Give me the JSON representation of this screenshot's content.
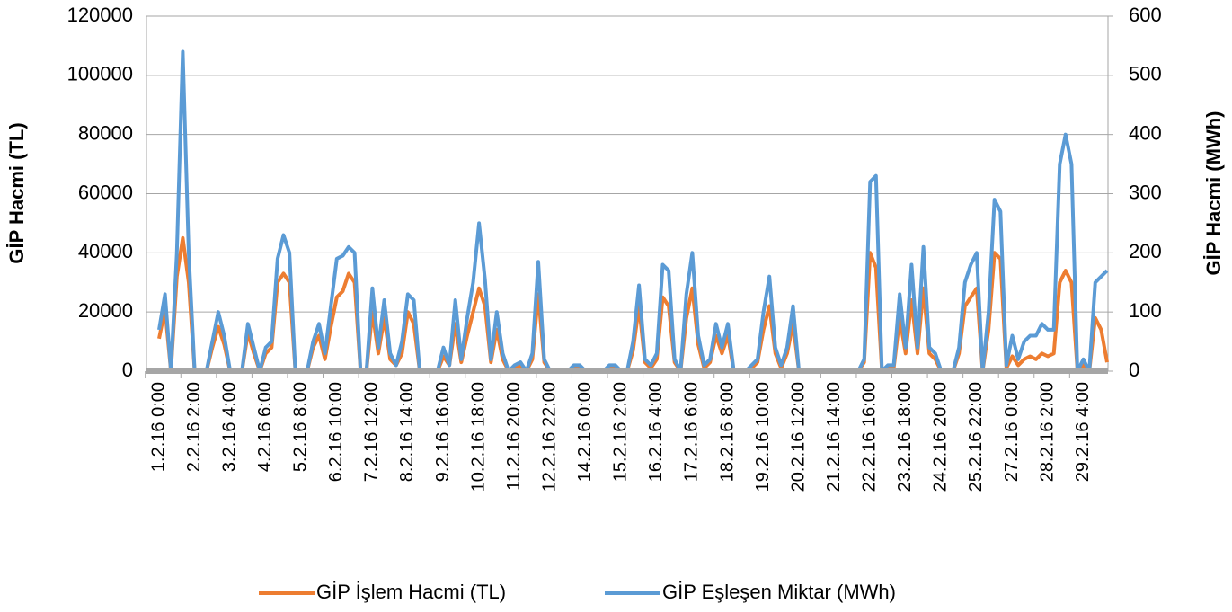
{
  "chart_data": {
    "type": "line",
    "y_label": "GİP Hacmi (TL)",
    "y2_label": "GİP Hacmi (MWh)",
    "categories": [
      "1.2.16 0:00",
      null,
      null,
      null,
      null,
      null,
      "2.2.16 2:00",
      null,
      null,
      null,
      null,
      null,
      "3.2.16 4:00",
      null,
      null,
      null,
      null,
      null,
      "4.2.16 6:00",
      null,
      null,
      null,
      null,
      null,
      "5.2.16 8:00",
      null,
      null,
      null,
      null,
      null,
      "6.2.16 10:00",
      null,
      null,
      null,
      null,
      null,
      "7.2.16 12:00",
      null,
      null,
      null,
      null,
      null,
      "8.2.16 14:00",
      null,
      null,
      null,
      null,
      null,
      "9.2.16 16:00",
      null,
      null,
      null,
      null,
      null,
      "10.2.16 18:00",
      null,
      null,
      null,
      null,
      null,
      "11.2.16 20:00",
      null,
      null,
      null,
      null,
      null,
      "12.2.16 22:00",
      null,
      null,
      null,
      null,
      null,
      "14.2.16 0:00",
      null,
      null,
      null,
      null,
      null,
      "15.2.16 2:00",
      null,
      null,
      null,
      null,
      null,
      "16.2.16 4:00",
      null,
      null,
      null,
      null,
      null,
      "17.2.16 6:00",
      null,
      null,
      null,
      null,
      null,
      "18.2.16 8:00",
      null,
      null,
      null,
      null,
      null,
      "19.2.16 10:00",
      null,
      null,
      null,
      null,
      null,
      "20.2.16 12:00",
      null,
      null,
      null,
      null,
      null,
      "21.2.16 14:00",
      null,
      null,
      null,
      null,
      null,
      "22.2.16 16:00",
      null,
      null,
      null,
      null,
      null,
      "23.2.16 18:00",
      null,
      null,
      null,
      null,
      null,
      "24.2.16 20:00",
      null,
      null,
      null,
      null,
      null,
      "25.2.16 22:00",
      null,
      null,
      null,
      null,
      null,
      "27.2.16 0:00",
      null,
      null,
      null,
      null,
      null,
      "28.2.16 2:00",
      null,
      null,
      null,
      null,
      null,
      "29.2.16 4:00",
      null,
      null,
      null,
      null
    ],
    "series": [
      {
        "name": "GİP İşlem Hacmi (TL)",
        "color": "#ed7d31",
        "axis": "y",
        "values": [
          11000,
          21000,
          0,
          32000,
          45000,
          30000,
          0,
          0,
          0,
          8000,
          15000,
          9000,
          0,
          0,
          0,
          13000,
          6000,
          0,
          6000,
          8000,
          30000,
          33000,
          30000,
          0,
          0,
          0,
          8000,
          12000,
          4000,
          15000,
          25000,
          27000,
          33000,
          30000,
          0,
          0,
          20000,
          6000,
          18000,
          4000,
          2000,
          6000,
          20000,
          16000,
          0,
          0,
          0,
          0,
          5000,
          2000,
          16000,
          3000,
          12000,
          20000,
          28000,
          22000,
          3000,
          14000,
          4000,
          0,
          1000,
          2000,
          0,
          4000,
          26000,
          3000,
          0,
          0,
          0,
          0,
          1000,
          1000,
          0,
          0,
          0,
          0,
          1000,
          1000,
          0,
          0,
          7000,
          22000,
          3000,
          1000,
          4000,
          25000,
          22000,
          3000,
          0,
          18000,
          28000,
          9000,
          1000,
          3000,
          12000,
          6000,
          12000,
          0,
          0,
          0,
          1000,
          3000,
          14000,
          22000,
          6000,
          1000,
          6000,
          16000,
          0,
          0,
          0,
          0,
          0,
          0,
          0,
          0,
          0,
          0,
          0,
          3000,
          40000,
          35000,
          0,
          1000,
          1000,
          18000,
          6000,
          24000,
          6000,
          28000,
          6000,
          4000,
          0,
          0,
          0,
          6000,
          22000,
          25000,
          28000,
          0,
          14000,
          40000,
          38000,
          1000,
          5000,
          2000,
          4000,
          5000,
          4000,
          6000,
          5000,
          6000,
          30000,
          34000,
          30000,
          0,
          2000,
          0,
          18000,
          14000,
          3000
        ]
      },
      {
        "name": "GİP Eşleşen Miktar (MWh)",
        "color": "#5b9bd5",
        "axis": "y2",
        "values": [
          70,
          130,
          0,
          200,
          540,
          200,
          0,
          0,
          0,
          50,
          100,
          60,
          0,
          0,
          0,
          80,
          40,
          0,
          40,
          50,
          190,
          230,
          200,
          0,
          0,
          0,
          50,
          80,
          30,
          110,
          190,
          195,
          210,
          200,
          0,
          0,
          140,
          40,
          120,
          30,
          10,
          50,
          130,
          120,
          0,
          0,
          0,
          0,
          40,
          10,
          120,
          20,
          90,
          150,
          250,
          155,
          20,
          100,
          30,
          0,
          10,
          15,
          0,
          30,
          185,
          20,
          0,
          0,
          0,
          0,
          10,
          10,
          0,
          0,
          0,
          0,
          10,
          10,
          0,
          0,
          50,
          145,
          20,
          10,
          30,
          180,
          170,
          20,
          0,
          130,
          200,
          60,
          10,
          20,
          80,
          40,
          80,
          0,
          0,
          0,
          10,
          20,
          100,
          160,
          40,
          10,
          40,
          110,
          0,
          0,
          0,
          0,
          0,
          0,
          0,
          0,
          0,
          0,
          0,
          20,
          320,
          330,
          0,
          10,
          10,
          130,
          40,
          180,
          40,
          210,
          40,
          30,
          0,
          0,
          0,
          40,
          150,
          180,
          200,
          0,
          100,
          290,
          270,
          10,
          60,
          20,
          50,
          60,
          60,
          80,
          70,
          70,
          350,
          400,
          350,
          0,
          20,
          0,
          150,
          160,
          170
        ]
      }
    ],
    "ylim": [
      0,
      120000
    ],
    "yticks": [
      0,
      20000,
      40000,
      60000,
      80000,
      100000,
      120000
    ],
    "y2lim": [
      0,
      600
    ],
    "y2ticks": [
      0,
      100,
      200,
      300,
      400,
      500,
      600
    ],
    "grid": true,
    "legend": "bottom"
  }
}
